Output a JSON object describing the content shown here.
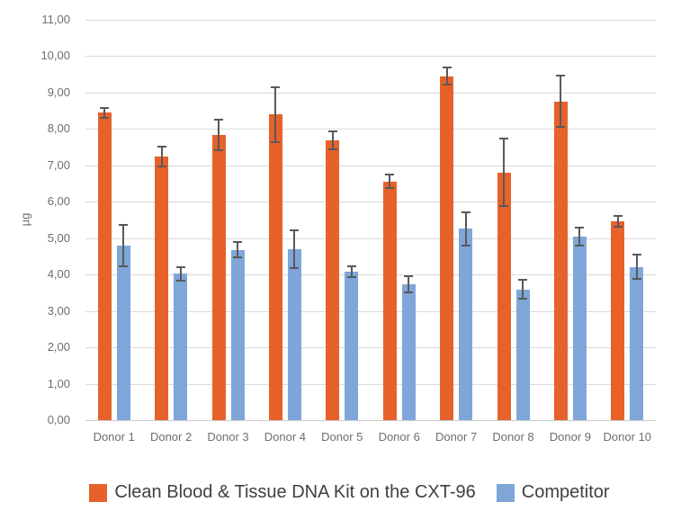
{
  "chart_data": {
    "type": "bar",
    "title": "",
    "xlabel": "",
    "ylabel": "µg",
    "ylim": [
      0,
      11
    ],
    "ytick_step": 1,
    "grid": true,
    "legend_position": "bottom",
    "y_ticks": [
      "0,00",
      "1,00",
      "2,00",
      "3,00",
      "4,00",
      "5,00",
      "6,00",
      "7,00",
      "8,00",
      "9,00",
      "10,00",
      "11,00"
    ],
    "categories": [
      "Donor 1",
      "Donor 2",
      "Donor 3",
      "Donor 4",
      "Donor 5",
      "Donor 6",
      "Donor 7",
      "Donor 8",
      "Donor 9",
      "Donor 10"
    ],
    "series": [
      {
        "name": "Clean Blood & Tissue DNA Kit on the CXT-96",
        "color": "#E7612B",
        "values": [
          8.45,
          7.25,
          7.83,
          8.4,
          7.68,
          6.56,
          9.45,
          6.81,
          8.76,
          5.46
        ],
        "error_bars": [
          0.16,
          0.3,
          0.44,
          0.78,
          0.27,
          0.21,
          0.26,
          0.95,
          0.72,
          0.17
        ]
      },
      {
        "name": "Competitor",
        "color": "#7FA6D9",
        "values": [
          4.8,
          4.02,
          4.68,
          4.7,
          4.08,
          3.73,
          5.26,
          3.59,
          5.05,
          4.21
        ],
        "error_bars": [
          0.6,
          0.21,
          0.23,
          0.54,
          0.17,
          0.24,
          0.48,
          0.29,
          0.27,
          0.36
        ]
      }
    ],
    "error_bar_color": "#595959"
  },
  "colors": {
    "background": "#FFFFFF",
    "gridline": "#D9D9D9",
    "axis_line": "#CCCCCC",
    "tick_text": "#6E6E6E",
    "legend_text": "#404040",
    "series1": "#E7612B",
    "series2": "#7FA6D9"
  }
}
